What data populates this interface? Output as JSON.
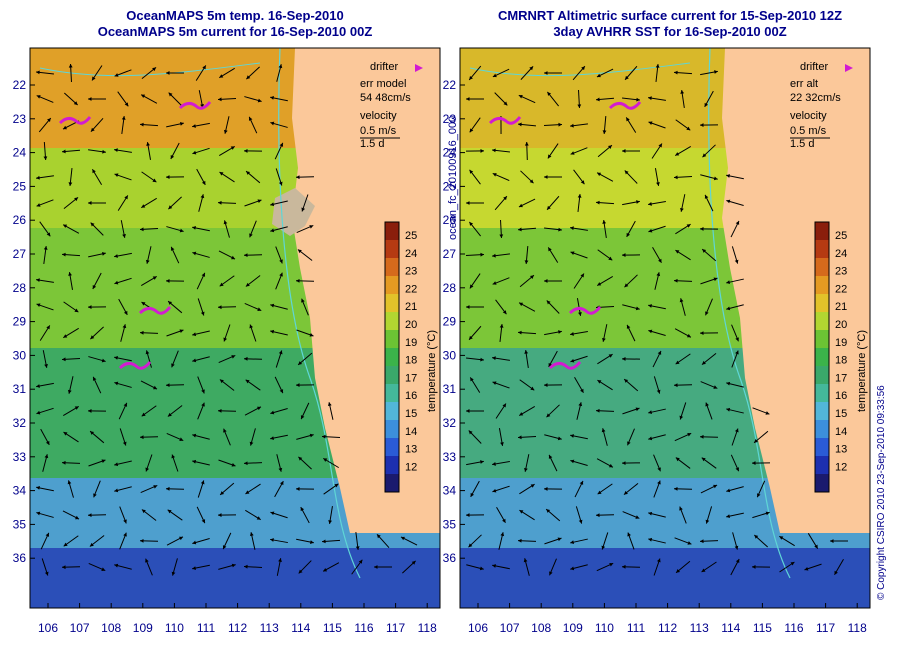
{
  "colors": {
    "title": "#00008b",
    "land": "#fbc89a",
    "highland": "#c9b89c",
    "stream_arrows": "#000000",
    "isobaths": "#5fd6d6",
    "drifter": "#d21bd2"
  },
  "panels": [
    {
      "title_line1": "OceanMAPS 5m temp. 16-Sep-2010",
      "title_line2": "OceanMAPS 5m current for 16-Sep-2010 00Z",
      "legend": {
        "drifter_label": "drifter",
        "err_label": "err model",
        "err_value": "54 48cm/s",
        "velocity_label": "velocity",
        "velocity_value": "0.5 m/s",
        "velocity_days": "1.5 d"
      }
    },
    {
      "title_line1": "CMRNRT Altimetric surface current for 15-Sep-2010 12Z",
      "title_line2": "3day AVHRR SST for 16-Sep-2010 00Z",
      "legend": {
        "drifter_label": "drifter",
        "err_label": "err alt",
        "err_value": "22 32cm/s",
        "velocity_label": "velocity",
        "velocity_value": "0.5 m/s",
        "velocity_days": "1.5 d"
      }
    }
  ],
  "axes": {
    "lat_ticks": [
      "22",
      "23",
      "24",
      "25",
      "26",
      "27",
      "28",
      "29",
      "30",
      "31",
      "32",
      "33",
      "34",
      "35",
      "36"
    ],
    "lon_ticks": [
      "106",
      "107",
      "108",
      "109",
      "110",
      "111",
      "112",
      "113",
      "114",
      "115",
      "116",
      "117",
      "118"
    ]
  },
  "colorbar": {
    "label": "temperature (°C)",
    "ticks": [
      "25",
      "24",
      "23",
      "22",
      "21",
      "20",
      "19",
      "18",
      "17",
      "16",
      "15",
      "14",
      "13",
      "12"
    ]
  },
  "side_text": {
    "file_id": "ocean_fc_20100916_000",
    "copyright": "© Copyright CSIRO 2010   23-Sep-2010 09:33:56"
  }
}
